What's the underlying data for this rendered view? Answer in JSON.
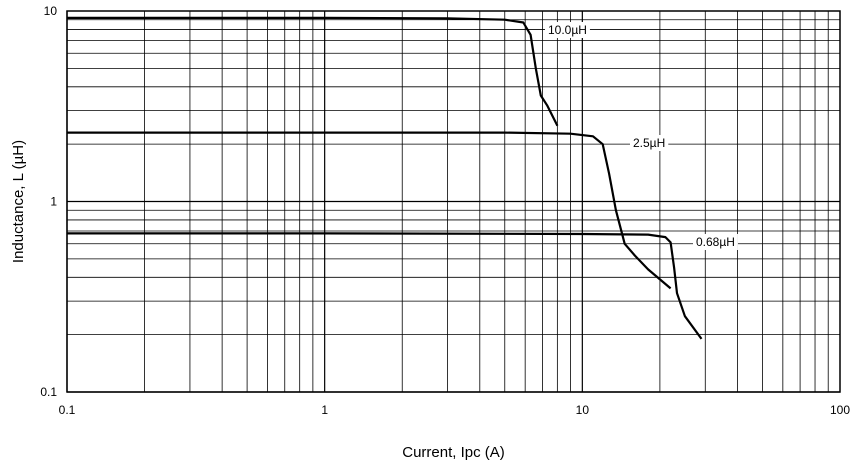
{
  "chart_data": {
    "type": "line",
    "title": "",
    "xlabel": "Current, Ipc (A)",
    "ylabel": "Inductance, L (µH)",
    "x_scale": "log",
    "y_scale": "log",
    "xlim": [
      0.1,
      100
    ],
    "ylim": [
      0.1,
      10
    ],
    "grid": true,
    "x_tick_labels": [
      "0.1",
      "1",
      "10",
      "100"
    ],
    "y_tick_labels": [
      "10",
      "1",
      "0.1"
    ],
    "series": [
      {
        "name": "10.0µH",
        "color": "#000000",
        "points": [
          [
            0.1,
            9.2
          ],
          [
            1,
            9.2
          ],
          [
            3,
            9.15
          ],
          [
            5,
            9.0
          ],
          [
            5.9,
            8.7
          ],
          [
            6.3,
            7.5
          ],
          [
            6.6,
            5.0
          ],
          [
            6.9,
            3.6
          ],
          [
            7.3,
            3.2
          ],
          [
            8.0,
            2.5
          ]
        ]
      },
      {
        "name": "2.5µH",
        "color": "#000000",
        "points": [
          [
            0.1,
            2.3
          ],
          [
            1,
            2.3
          ],
          [
            5,
            2.3
          ],
          [
            9,
            2.27
          ],
          [
            11,
            2.2
          ],
          [
            12,
            2.0
          ],
          [
            12.7,
            1.4
          ],
          [
            13.5,
            0.9
          ],
          [
            14.6,
            0.6
          ],
          [
            16,
            0.52
          ],
          [
            18,
            0.44
          ],
          [
            22,
            0.35
          ]
        ]
      },
      {
        "name": "0.68µH",
        "color": "#000000",
        "points": [
          [
            0.1,
            0.68
          ],
          [
            1,
            0.68
          ],
          [
            10,
            0.675
          ],
          [
            18,
            0.67
          ],
          [
            21,
            0.65
          ],
          [
            22,
            0.61
          ],
          [
            22.7,
            0.45
          ],
          [
            23.3,
            0.33
          ],
          [
            25,
            0.25
          ],
          [
            29,
            0.19
          ]
        ]
      }
    ]
  }
}
